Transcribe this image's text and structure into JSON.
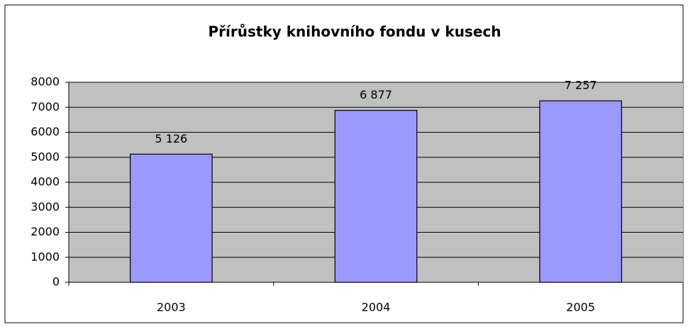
{
  "chart_data": {
    "type": "bar",
    "title": "Přírůstky knihovního fondu v kusech",
    "categories": [
      "2003",
      "2004",
      "2005"
    ],
    "values": [
      5126,
      6877,
      7257
    ],
    "value_labels": [
      "5 126",
      "6 877",
      "7 257"
    ],
    "color": "#9999ff",
    "ylim": [
      0,
      8000
    ],
    "yticks": [
      0,
      1000,
      2000,
      3000,
      4000,
      5000,
      6000,
      7000,
      8000
    ],
    "grid": true
  }
}
